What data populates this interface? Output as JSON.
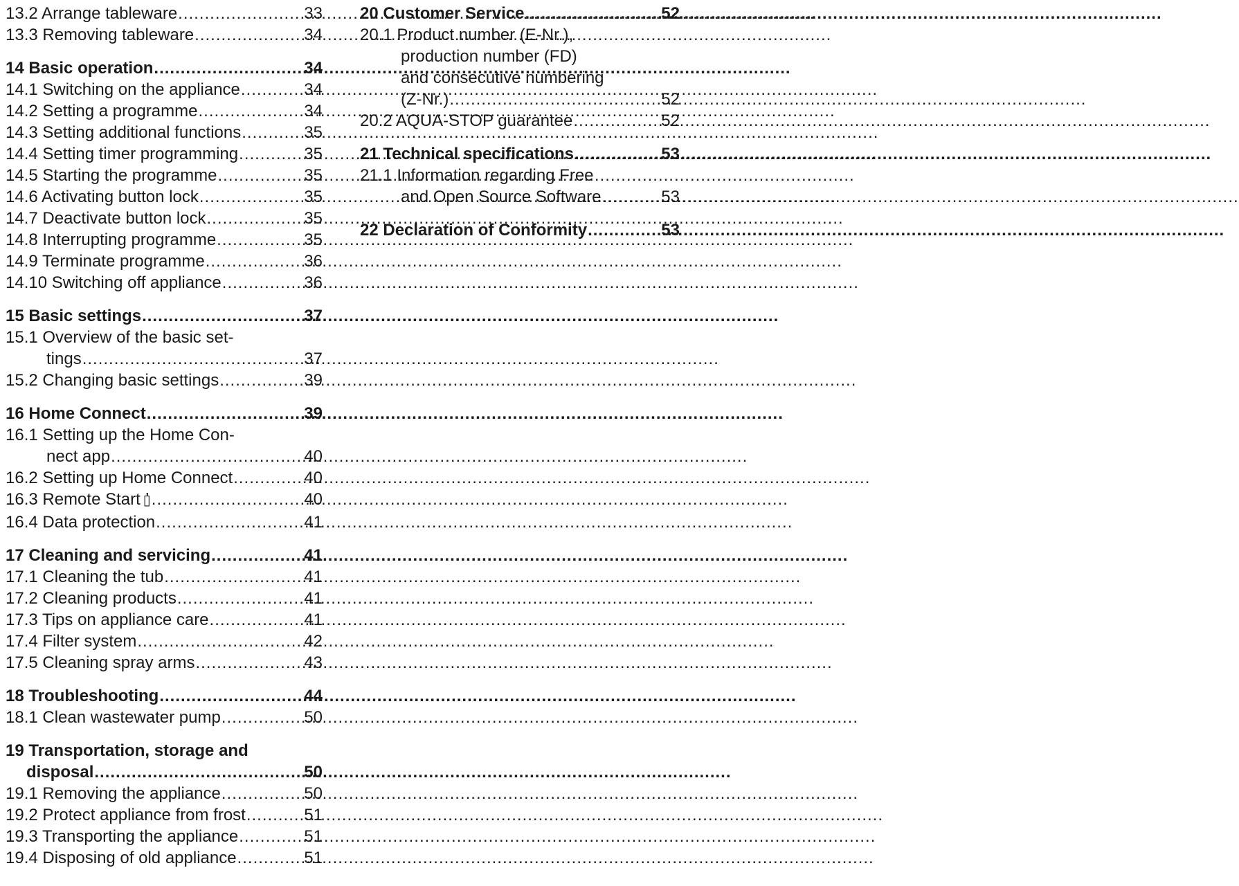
{
  "left": [
    {
      "entries": [
        {
          "first": "13.2 Arrange tableware",
          "cont": [],
          "page": "33"
        },
        {
          "first": "13.3 Removing tableware",
          "cont": [],
          "page": "34"
        }
      ]
    },
    {
      "heading": {
        "first": "14 Basic operation",
        "cont": [],
        "page": "34"
      },
      "entries": [
        {
          "first": "14.1 Switching on the appliance",
          "cont": [],
          "page": "34"
        },
        {
          "first": "14.2 Setting a programme",
          "cont": [],
          "page": "34"
        },
        {
          "first": "14.3 Setting additional functions",
          "cont": [],
          "page": "35"
        },
        {
          "first": "14.4 Setting timer programming",
          "cont": [],
          "page": "35"
        },
        {
          "first": "14.5 Starting the programme",
          "cont": [],
          "page": "35"
        },
        {
          "first": "14.6 Activating button lock",
          "cont": [],
          "page": "35"
        },
        {
          "first": "14.7 Deactivate button lock",
          "cont": [],
          "page": "35"
        },
        {
          "first": "14.8 Interrupting programme",
          "cont": [],
          "page": "35"
        },
        {
          "first": "14.9 Terminate programme",
          "cont": [],
          "page": "36"
        },
        {
          "first": "14.10 Switching off appliance",
          "cont": [],
          "page": "36"
        }
      ]
    },
    {
      "heading": {
        "first": "15 Basic settings",
        "cont": [],
        "page": "37"
      },
      "entries": [
        {
          "first": "15.1 Overview of the basic set-",
          "cont": [
            "tings"
          ],
          "page": "37"
        },
        {
          "first": "15.2 Changing basic settings",
          "cont": [],
          "page": "39"
        }
      ]
    },
    {
      "heading": {
        "first": "16 Home Connect",
        "cont": [],
        "page": "39"
      },
      "entries": [
        {
          "first": "16.1 Setting up the Home Con-",
          "cont": [
            "nect app"
          ],
          "page": "40"
        },
        {
          "first": "16.2 Setting up Home Connect",
          "cont": [],
          "page": "40"
        },
        {
          "first": "16.3 Remote Start",
          "icon": "remote-start-icon",
          "cont": [],
          "page": "40"
        },
        {
          "first": "16.4 Data protection",
          "cont": [],
          "page": "41"
        }
      ]
    },
    {
      "heading": {
        "first": "17 Cleaning and servicing",
        "cont": [],
        "page": "41"
      },
      "entries": [
        {
          "first": "17.1 Cleaning the tub",
          "cont": [],
          "page": "41"
        },
        {
          "first": "17.2 Cleaning products",
          "cont": [],
          "page": "41"
        },
        {
          "first": "17.3 Tips on appliance care",
          "cont": [],
          "page": "41"
        },
        {
          "first": "17.4 Filter system",
          "cont": [],
          "page": "42"
        },
        {
          "first": "17.5 Cleaning spray arms",
          "cont": [],
          "page": "43"
        }
      ]
    },
    {
      "heading": {
        "first": "18 Troubleshooting",
        "cont": [],
        "page": "44"
      },
      "entries": [
        {
          "first": "18.1 Clean wastewater pump",
          "cont": [],
          "page": "50"
        }
      ]
    },
    {
      "heading": {
        "first": "19 Transportation, storage and",
        "cont": [
          "disposal"
        ],
        "page": "50"
      },
      "entries": [
        {
          "first": "19.1 Removing the appliance",
          "cont": [],
          "page": "50"
        },
        {
          "first": "19.2 Protect appliance from frost",
          "cont": [],
          "page": "51"
        },
        {
          "first": "19.3 Transporting the appliance",
          "cont": [],
          "page": "51"
        },
        {
          "first": "19.4 Disposing of old appliance",
          "cont": [],
          "page": "51"
        }
      ]
    }
  ],
  "right": [
    {
      "heading": {
        "first": "20 Customer Service",
        "cont": [],
        "page": "52"
      },
      "entries": [
        {
          "first": "20.1 Product number (E-Nr.),",
          "cont": [
            "production number (FD)",
            "and consecutive numbering",
            "(Z-Nr.)"
          ],
          "page": "52"
        },
        {
          "first": "20.2 AQUA-STOP guarantee",
          "cont": [],
          "page": "52"
        }
      ]
    },
    {
      "heading": {
        "first": "21 Technical specifications",
        "cont": [],
        "page": "53"
      },
      "entries": [
        {
          "first": "21.1 Information regarding Free",
          "cont": [
            "and Open Source Software"
          ],
          "page": "53"
        }
      ]
    },
    {
      "heading": {
        "first": "22 Declaration of Conformity",
        "cont": [],
        "page": "53"
      },
      "entries": []
    }
  ]
}
